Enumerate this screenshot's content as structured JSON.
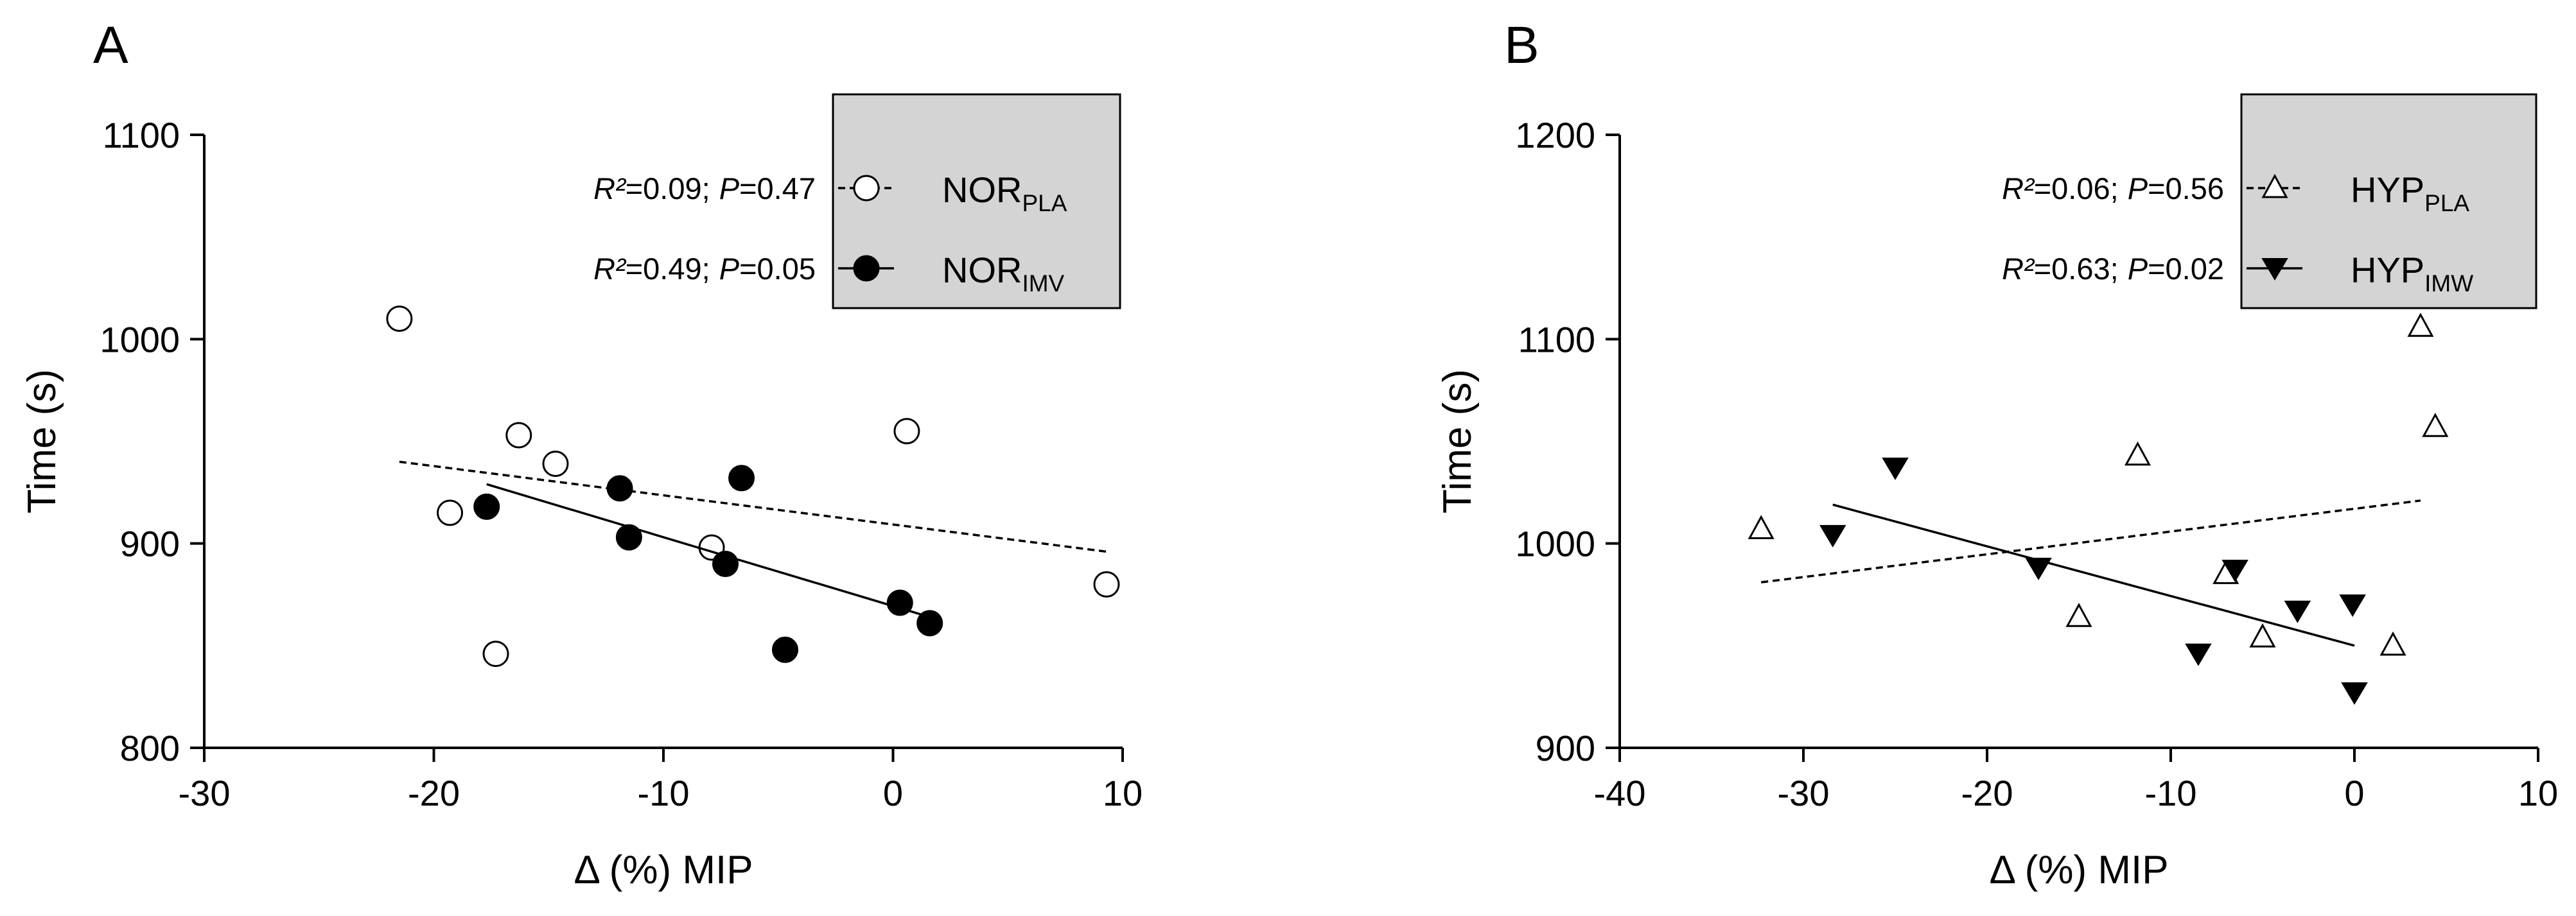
{
  "chart_data": [
    {
      "panel_label": "A",
      "type": "scatter",
      "xlabel": "Δ (%) MIP",
      "ylabel": "Time (s)",
      "xlim": [
        -30,
        10
      ],
      "ylim": [
        800,
        1100
      ],
      "xticks": [
        -30,
        -20,
        -10,
        0,
        10
      ],
      "yticks": [
        800,
        900,
        1000,
        1100
      ],
      "legend_position": "top-right",
      "series": [
        {
          "name": "NOR",
          "subscript": "PLA",
          "marker": "circle-open",
          "line_style": "dashed",
          "stats": {
            "r2_label": "R²",
            "r2_value": "=0.09;",
            "p_label": "P",
            "p_value": "=0.47"
          },
          "points": [
            {
              "x": -21.5,
              "y": 1010
            },
            {
              "x": -19.3,
              "y": 915
            },
            {
              "x": -17.3,
              "y": 846
            },
            {
              "x": -16.3,
              "y": 953
            },
            {
              "x": -14.7,
              "y": 939
            },
            {
              "x": -7.9,
              "y": 898
            },
            {
              "x": 0.6,
              "y": 955
            },
            {
              "x": 9.3,
              "y": 880
            }
          ],
          "fit": {
            "x": [
              -21.5,
              9.3
            ],
            "y": [
              940,
              896
            ]
          }
        },
        {
          "name": "NOR",
          "subscript": "IMV",
          "marker": "circle-filled",
          "line_style": "solid",
          "stats": {
            "r2_label": "R²",
            "r2_value": "=0.49;",
            "p_label": "P",
            "p_value": "=0.05"
          },
          "points": [
            {
              "x": -17.7,
              "y": 918
            },
            {
              "x": -11.9,
              "y": 927
            },
            {
              "x": -11.5,
              "y": 903
            },
            {
              "x": -7.3,
              "y": 890
            },
            {
              "x": -6.6,
              "y": 932
            },
            {
              "x": -4.7,
              "y": 848
            },
            {
              "x": 0.3,
              "y": 871
            },
            {
              "x": 1.6,
              "y": 861
            }
          ],
          "fit": {
            "x": [
              -17.7,
              1.6
            ],
            "y": [
              929,
              864
            ]
          }
        }
      ]
    },
    {
      "panel_label": "B",
      "type": "scatter",
      "xlabel": "Δ (%) MIP",
      "ylabel": "Time (s)",
      "xlim": [
        -40,
        10
      ],
      "ylim": [
        900,
        1200
      ],
      "xticks": [
        -40,
        -30,
        -20,
        -10,
        0,
        10
      ],
      "yticks": [
        900,
        1000,
        1100,
        1200
      ],
      "legend_position": "top-right",
      "series": [
        {
          "name": "HYP",
          "subscript": "PLA",
          "marker": "triangle-up-open",
          "line_style": "dashed",
          "stats": {
            "r2_label": "R²",
            "r2_value": "=0.06;",
            "p_label": "P",
            "p_value": "=0.56"
          },
          "points": [
            {
              "x": -32.3,
              "y": 1007
            },
            {
              "x": -15.0,
              "y": 964
            },
            {
              "x": -11.8,
              "y": 1043
            },
            {
              "x": -7.0,
              "y": 985
            },
            {
              "x": -5.0,
              "y": 954
            },
            {
              "x": 2.1,
              "y": 950
            },
            {
              "x": 3.6,
              "y": 1106
            },
            {
              "x": 4.4,
              "y": 1057
            }
          ],
          "fit": {
            "x": [
              -32.3,
              3.6
            ],
            "y": [
              981,
              1021
            ]
          }
        },
        {
          "name": "HYP",
          "subscript": "IMW",
          "marker": "triangle-down-filled",
          "line_style": "solid",
          "stats": {
            "r2_label": "R²",
            "r2_value": "=0.63;",
            "p_label": "P",
            "p_value": "=0.02"
          },
          "points": [
            {
              "x": -28.4,
              "y": 1004
            },
            {
              "x": -25.0,
              "y": 1037
            },
            {
              "x": -17.2,
              "y": 988
            },
            {
              "x": -8.5,
              "y": 946
            },
            {
              "x": -6.5,
              "y": 987
            },
            {
              "x": -3.1,
              "y": 967
            },
            {
              "x": -0.1,
              "y": 970
            },
            {
              "x": 0.0,
              "y": 927
            }
          ],
          "fit": {
            "x": [
              -28.4,
              0.0
            ],
            "y": [
              1019,
              950
            ]
          }
        }
      ]
    }
  ]
}
